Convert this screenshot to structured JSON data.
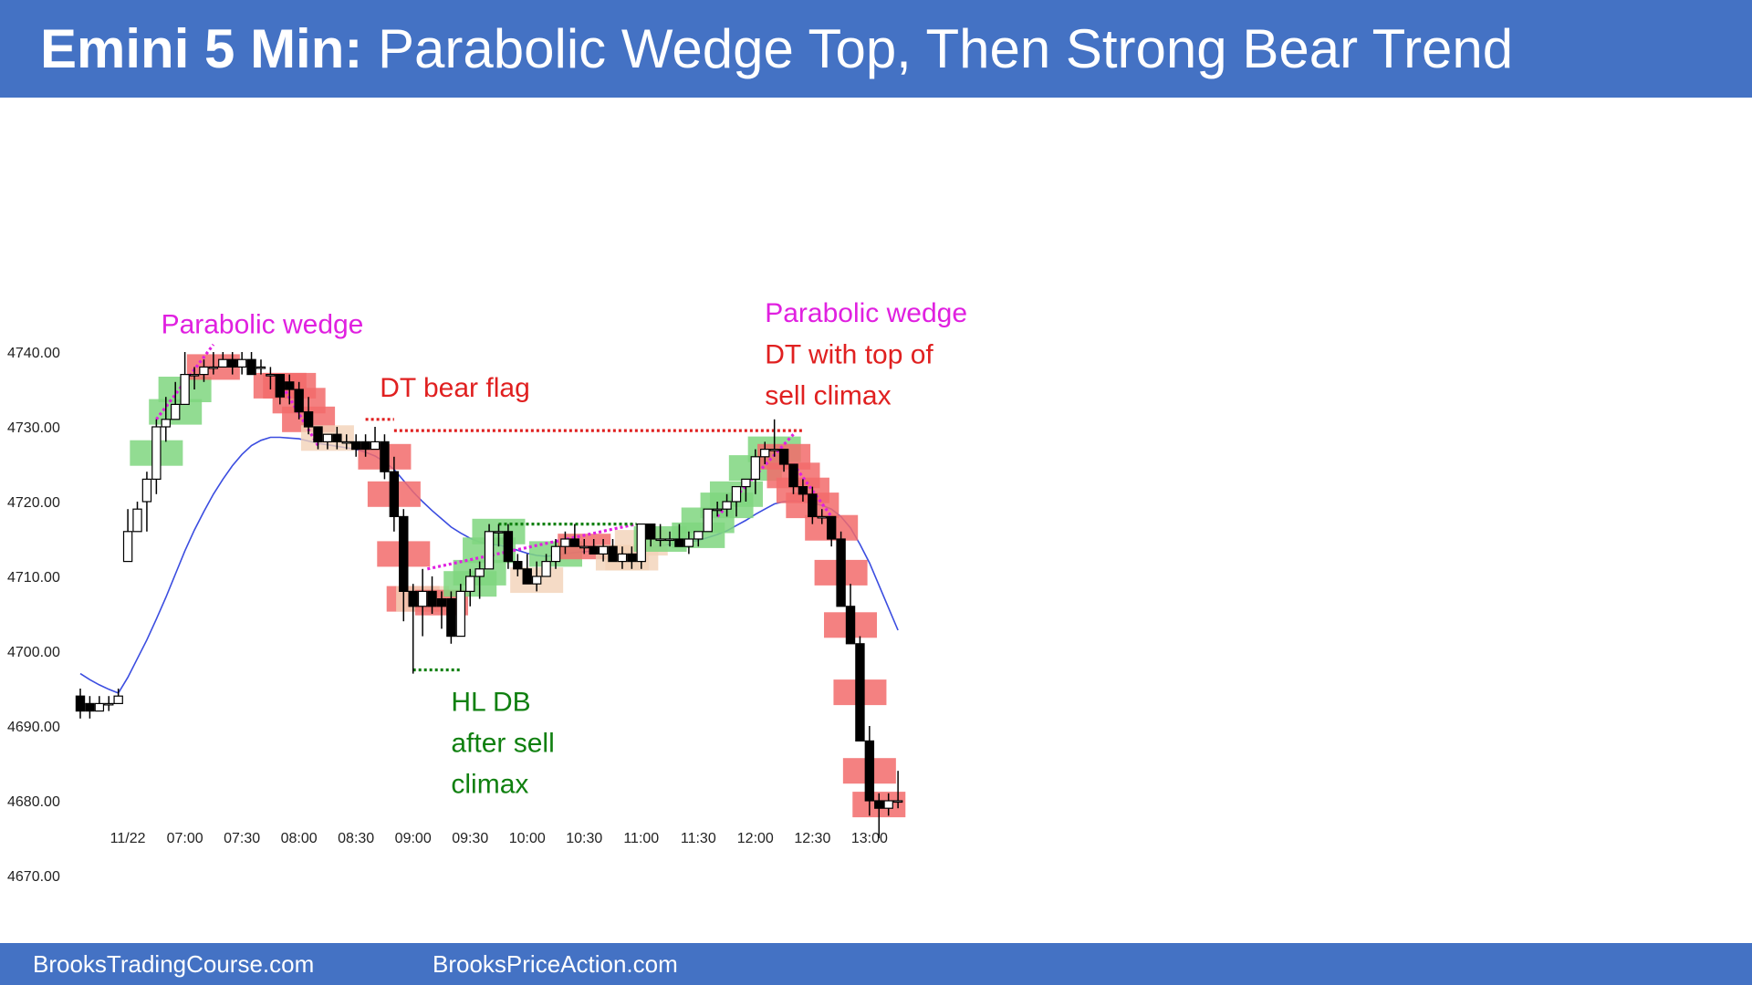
{
  "header": {
    "title_bold": "Emini 5 Min:",
    "title_rest": " Parabolic Wedge Top, Then Strong Bear Trend"
  },
  "footer": {
    "left": "BrooksTradingCourse.com",
    "right": "BrooksPriceAction.com"
  },
  "chart_data": {
    "type": "candlestick",
    "title": "Emini 5 Min: Parabolic Wedge Top, Then Strong Bear Trend",
    "ylim": [
      4665,
      4745
    ],
    "y_ticks": [
      "4670.00",
      "4680.00",
      "4690.00",
      "4700.00",
      "4710.00",
      "4720.00",
      "4730.00",
      "4740.00"
    ],
    "x_ticks": [
      {
        "bar": 5,
        "label": "11/22"
      },
      {
        "bar": 11,
        "label": "07:00"
      },
      {
        "bar": 17,
        "label": "07:30"
      },
      {
        "bar": 23,
        "label": "08:00"
      },
      {
        "bar": 29,
        "label": "08:30"
      },
      {
        "bar": 35,
        "label": "09:00"
      },
      {
        "bar": 41,
        "label": "09:30"
      },
      {
        "bar": 47,
        "label": "10:00"
      },
      {
        "bar": 53,
        "label": "10:30"
      },
      {
        "bar": 59,
        "label": "11:00"
      },
      {
        "bar": 65,
        "label": "11:30"
      },
      {
        "bar": 71,
        "label": "12:00"
      },
      {
        "bar": 77,
        "label": "12:30"
      },
      {
        "bar": 83,
        "label": "13:00"
      }
    ],
    "colors": {
      "bull_highlight": "#7fd67f",
      "bear_highlight": "#f26b6b",
      "doji_highlight": "#f2d2b8",
      "ema": "#3b4de0",
      "magenta": "#e020e0",
      "red": "#e02020",
      "green": "#108010",
      "axis_text": "#222222"
    },
    "bars": [
      [
        4694,
        4695,
        4691,
        4692,
        "n"
      ],
      [
        4693,
        4694,
        4691,
        4692,
        "n"
      ],
      [
        4692,
        4694,
        4692,
        4693,
        "n"
      ],
      [
        4693,
        4694,
        4692,
        4693,
        "n"
      ],
      [
        4693,
        4695,
        4693,
        4694,
        "n"
      ],
      [
        4712,
        4719,
        4712,
        4716,
        "n"
      ],
      [
        4716,
        4720,
        4716,
        4719,
        "n"
      ],
      [
        4720,
        4724,
        4716,
        4723,
        "n"
      ],
      [
        4723,
        4731,
        4721,
        4730,
        "g"
      ],
      [
        4730,
        4734,
        4728,
        4731,
        "n"
      ],
      [
        4731,
        4736,
        4731,
        4733,
        "g"
      ],
      [
        4733,
        4740,
        4733,
        4737,
        "g"
      ],
      [
        4737,
        4738,
        4735,
        4737,
        "n"
      ],
      [
        4737,
        4739,
        4736,
        4738,
        "n"
      ],
      [
        4738,
        4740,
        4737,
        4738,
        "r"
      ],
      [
        4738,
        4740,
        4738,
        4739,
        "n"
      ],
      [
        4739,
        4740,
        4737,
        4738,
        "n"
      ],
      [
        4738,
        4740,
        4737,
        4739,
        "n"
      ],
      [
        4739,
        4740,
        4737,
        4737,
        "n"
      ],
      [
        4738,
        4739,
        4737,
        4738,
        "n"
      ],
      [
        4737,
        4738,
        4735,
        4737,
        "n"
      ],
      [
        4737,
        4737,
        4733,
        4734,
        "r"
      ],
      [
        4736,
        4737,
        4733,
        4735,
        "r"
      ],
      [
        4735,
        4736,
        4731,
        4732,
        "r"
      ],
      [
        4732,
        4734,
        4729,
        4730,
        "r"
      ],
      [
        4730,
        4730,
        4727,
        4728,
        "n"
      ],
      [
        4728,
        4729,
        4727,
        4729,
        "d"
      ],
      [
        4729,
        4730,
        4727,
        4728,
        "n"
      ],
      [
        4728,
        4729,
        4727,
        4728,
        "n"
      ],
      [
        4728,
        4729,
        4726,
        4727,
        "n"
      ],
      [
        4728,
        4729,
        4726,
        4727,
        "n"
      ],
      [
        4727,
        4730,
        4727,
        4728,
        "n"
      ],
      [
        4728,
        4729,
        4723,
        4724,
        "r"
      ],
      [
        4724,
        4726,
        4716,
        4718,
        "r"
      ],
      [
        4718,
        4719,
        4704,
        4708,
        "r"
      ],
      [
        4708,
        4709,
        4697,
        4706,
        "r"
      ],
      [
        4706,
        4711,
        4702,
        4708,
        "d"
      ],
      [
        4708,
        4710,
        4705,
        4706,
        "n"
      ],
      [
        4707,
        4708,
        4703,
        4706,
        "r"
      ],
      [
        4707,
        4708,
        4701,
        4702,
        "n"
      ],
      [
        4702,
        4709,
        4702,
        4708,
        "n"
      ],
      [
        4708,
        4711,
        4706,
        4710,
        "g"
      ],
      [
        4710,
        4712,
        4707,
        4711,
        "g"
      ],
      [
        4711,
        4717,
        4711,
        4716,
        "g"
      ],
      [
        4716,
        4717,
        4714,
        4716,
        "g"
      ],
      [
        4716,
        4717,
        4711,
        4712,
        "n"
      ],
      [
        4712,
        4713,
        4710,
        4711,
        "n"
      ],
      [
        4711,
        4713,
        4709,
        4709,
        "n"
      ],
      [
        4709,
        4712,
        4708,
        4710,
        "d"
      ],
      [
        4710,
        4713,
        4710,
        4712,
        "n"
      ],
      [
        4712,
        4715,
        4711,
        4714,
        "g"
      ],
      [
        4714,
        4716,
        4713,
        4715,
        "n"
      ],
      [
        4715,
        4717,
        4714,
        4714,
        "n"
      ],
      [
        4714,
        4715,
        4713,
        4714,
        "r"
      ],
      [
        4714,
        4715,
        4713,
        4713,
        "n"
      ],
      [
        4713,
        4715,
        4712,
        4714,
        "n"
      ],
      [
        4714,
        4715,
        4712,
        4712,
        "n"
      ],
      [
        4712,
        4714,
        4711,
        4713,
        "d"
      ],
      [
        4713,
        4714,
        4711,
        4712,
        "d"
      ],
      [
        4712,
        4717,
        4711,
        4717,
        "d"
      ],
      [
        4717,
        4717,
        4714,
        4715,
        "n"
      ],
      [
        4715,
        4717,
        4714,
        4715,
        "g"
      ],
      [
        4715,
        4716,
        4714,
        4715,
        "n"
      ],
      [
        4715,
        4717,
        4714,
        4714,
        "n"
      ],
      [
        4714,
        4716,
        4713,
        4715,
        "n"
      ],
      [
        4715,
        4716,
        4714,
        4716,
        "g"
      ],
      [
        4716,
        4719,
        4716,
        4719,
        "g"
      ],
      [
        4719,
        4720,
        4718,
        4719,
        "n"
      ],
      [
        4719,
        4721,
        4718,
        4720,
        "g"
      ],
      [
        4720,
        4722,
        4718,
        4722,
        "g"
      ],
      [
        4722,
        4723,
        4720,
        4723,
        "n"
      ],
      [
        4723,
        4727,
        4721,
        4726,
        "g"
      ],
      [
        4726,
        4728,
        4725,
        4727,
        "n"
      ],
      [
        4727,
        4731,
        4726,
        4727,
        "g"
      ],
      [
        4727,
        4727,
        4724,
        4725,
        "r"
      ],
      [
        4725,
        4725,
        4721,
        4722,
        "r"
      ],
      [
        4722,
        4723,
        4720,
        4721,
        "r"
      ],
      [
        4721,
        4722,
        4717,
        4718,
        "r"
      ],
      [
        4718,
        4719,
        4717,
        4718,
        "n"
      ],
      [
        4718,
        4718,
        4714,
        4715,
        "r"
      ],
      [
        4715,
        4716,
        4706,
        4706,
        "r"
      ],
      [
        4706,
        4709,
        4701,
        4701,
        "r"
      ],
      [
        4701,
        4702,
        4688,
        4688,
        "r"
      ],
      [
        4688,
        4690,
        4678,
        4680,
        "r"
      ],
      [
        4680,
        4681,
        4675,
        4679,
        "r"
      ],
      [
        4679,
        4681,
        4678,
        4680,
        "n"
      ],
      [
        4680,
        4684,
        4679,
        4680,
        "n"
      ]
    ],
    "ema": [
      4697,
      4696.2,
      4695.5,
      4694.9,
      4694.4,
      4696.5,
      4699,
      4701.5,
      4704.3,
      4707.2,
      4710.3,
      4713.4,
      4716.2,
      4718.7,
      4721,
      4723,
      4724.8,
      4726.3,
      4727.5,
      4728.2,
      4728.6,
      4728.6,
      4728.5,
      4728.4,
      4728.1,
      4727.8,
      4727.6,
      4727.4,
      4727.2,
      4727,
      4726.6,
      4726.1,
      4725.3,
      4724.3,
      4722.8,
      4721.3,
      4720,
      4718.8,
      4717.7,
      4716.6,
      4715.8,
      4715.1,
      4714.6,
      4714.3,
      4714.2,
      4713.9,
      4713.5,
      4713.1,
      4712.8,
      4712.7,
      4712.8,
      4713,
      4713.2,
      4713.3,
      4713.4,
      4713.4,
      4713.4,
      4713.4,
      4713.4,
      4713.6,
      4713.8,
      4714.1,
      4714.3,
      4714.4,
      4714.6,
      4714.8,
      4715.2,
      4715.6,
      4716.1,
      4716.8,
      4717.5,
      4718.3,
      4719,
      4719.7,
      4720,
      4720.1,
      4720,
      4719.8,
      4719.5,
      4719,
      4718,
      4716.5,
      4714.3,
      4711.8,
      4708.8,
      4705.8,
      4702.8
    ],
    "annotations": [
      {
        "id": "parabolic-wedge-1",
        "lines": [
          "Parabolic wedge"
        ],
        "color": "magenta",
        "bar": 8.5,
        "price": 4742.5,
        "anchor": "start"
      },
      {
        "id": "dt-bear-flag",
        "lines": [
          "DT bear flag"
        ],
        "color": "red",
        "bar": 31.5,
        "price": 4734,
        "anchor": "start"
      },
      {
        "id": "hl-db",
        "lines": [
          "HL DB",
          "after sell",
          "climax"
        ],
        "color": "green",
        "bar": 39,
        "price": 4692,
        "anchor": "start"
      },
      {
        "id": "parabolic-wedge-2",
        "lines": [
          "Parabolic wedge"
        ],
        "color": "magenta",
        "bar": 72,
        "price": 4744,
        "anchor": "start"
      },
      {
        "id": "dt-top-sell-climax",
        "lines": [
          "DT with top of",
          "sell climax"
        ],
        "color": "red",
        "bar": 72,
        "price": 4738.5,
        "anchor": "start"
      }
    ],
    "dotted_lines": [
      {
        "color": "magenta",
        "points": [
          [
            8,
            4731
          ],
          [
            14,
            4741
          ]
        ]
      },
      {
        "color": "magenta",
        "points": [
          [
            21,
            4736
          ],
          [
            25,
            4727.5
          ]
        ]
      },
      {
        "color": "red",
        "points": [
          [
            30,
            4731
          ],
          [
            33,
            4731
          ]
        ]
      },
      {
        "color": "red",
        "points": [
          [
            33,
            4729.5
          ],
          [
            76,
            4729.5
          ]
        ]
      },
      {
        "color": "magenta",
        "points": [
          [
            36.5,
            4711
          ],
          [
            58.5,
            4717
          ]
        ]
      },
      {
        "color": "green",
        "points": [
          [
            44,
            4717
          ],
          [
            58.5,
            4717
          ]
        ]
      },
      {
        "color": "green",
        "points": [
          [
            35,
            4697.5
          ],
          [
            40,
            4697.5
          ]
        ]
      },
      {
        "color": "magenta",
        "points": [
          [
            67,
            4718
          ],
          [
            75,
            4729
          ]
        ]
      },
      {
        "color": "magenta",
        "points": [
          [
            75,
            4725
          ],
          [
            79,
            4718
          ]
        ]
      }
    ]
  }
}
